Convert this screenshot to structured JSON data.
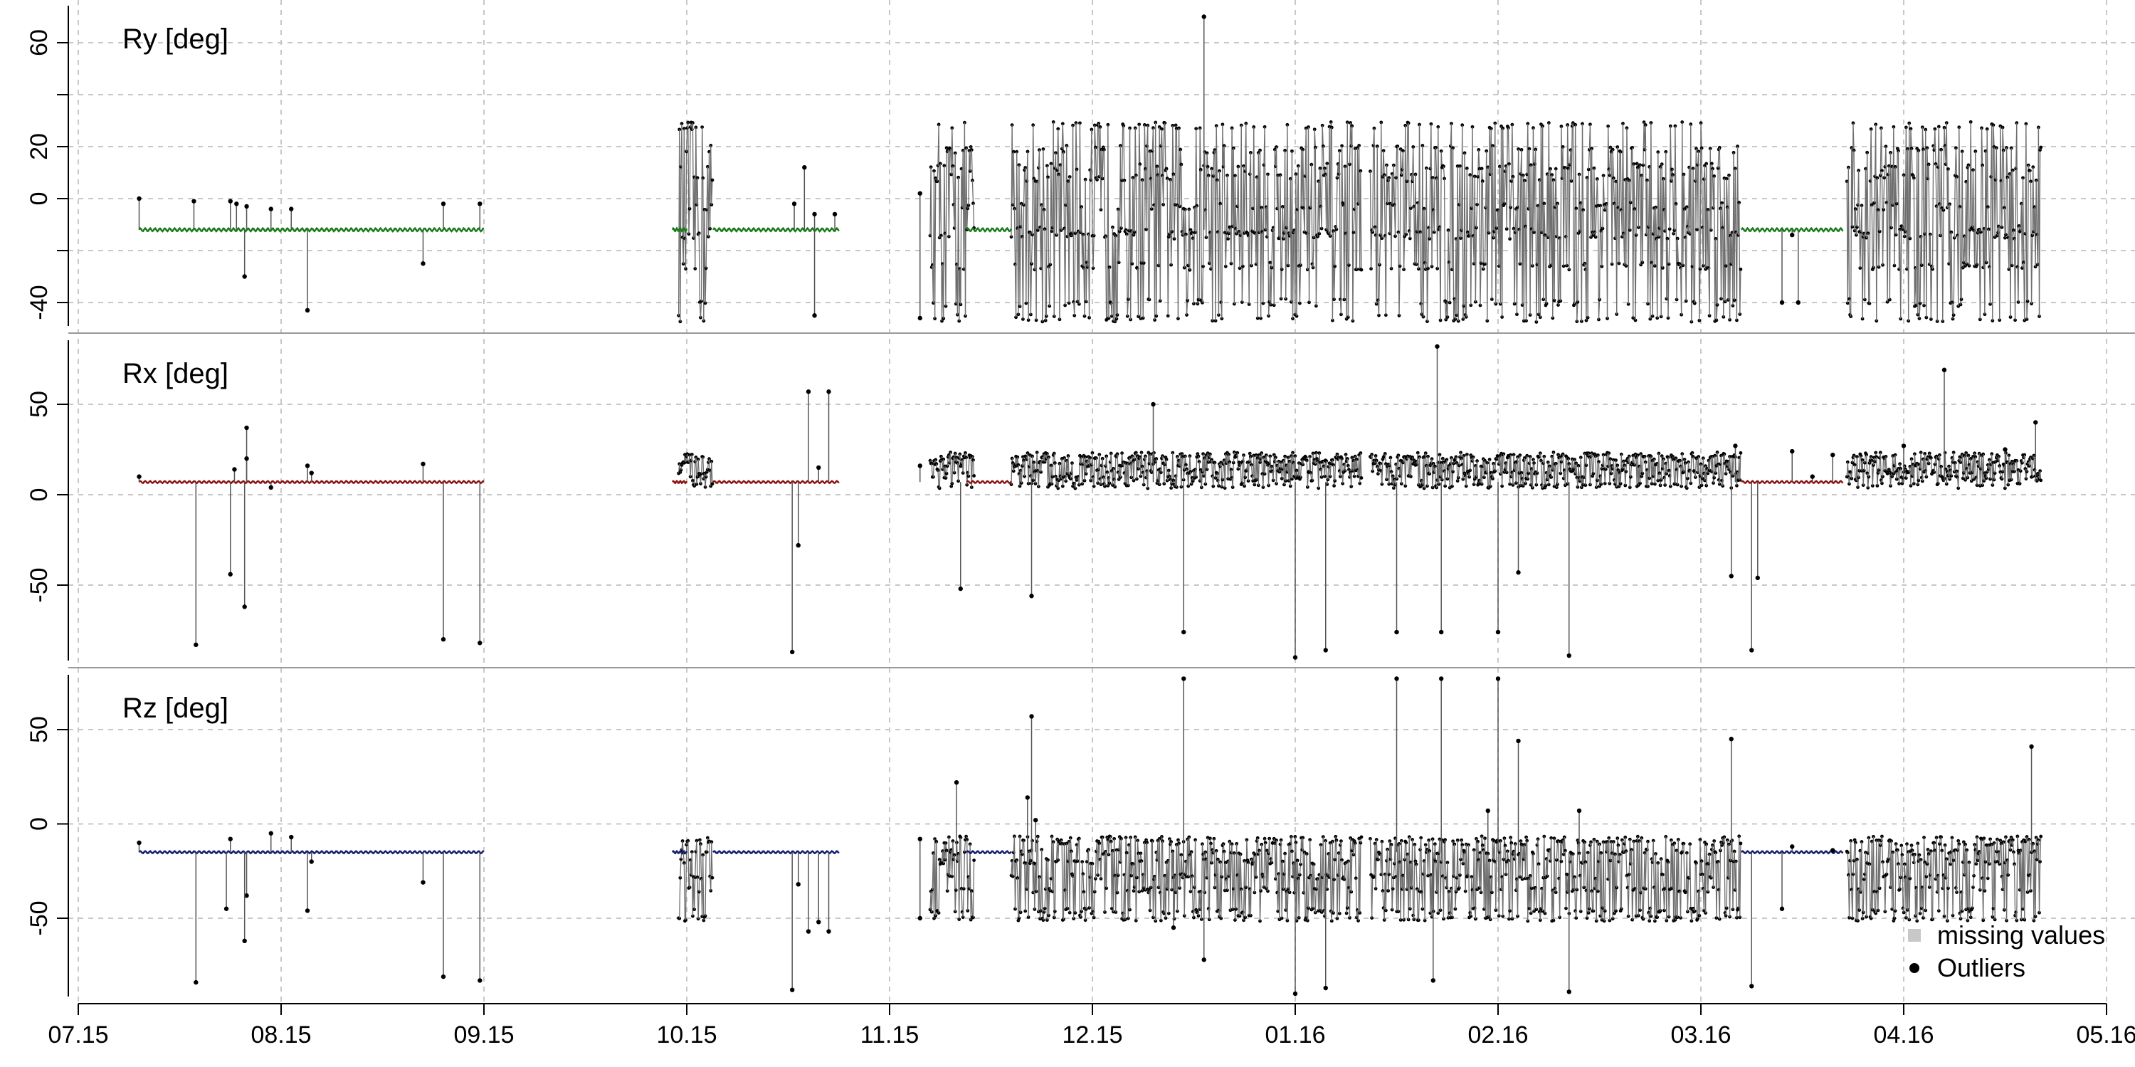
{
  "chart_data": {
    "type": "line",
    "x_ticks": [
      "07.15",
      "08.15",
      "09.15",
      "10.15",
      "11.15",
      "12.15",
      "01.16",
      "02.16",
      "03.16",
      "04.16",
      "05.16"
    ],
    "x_tick_positions": [
      0,
      1,
      2,
      3,
      4,
      5,
      6,
      7,
      8,
      9,
      10
    ],
    "x_range": [
      -0.02,
      10.02
    ],
    "segments": {
      "clean": [
        [
          0.3,
          2.0
        ],
        [
          2.93,
          3.0
        ],
        [
          3.13,
          3.75
        ],
        [
          4.38,
          4.6
        ],
        [
          8.2,
          8.7
        ]
      ],
      "noisy": [
        [
          2.96,
          3.13
        ],
        [
          4.2,
          4.42
        ],
        [
          4.6,
          6.33
        ],
        [
          6.37,
          8.2
        ],
        [
          8.72,
          9.68
        ]
      ],
      "flat_noisy": [
        [
          4.58,
          4.6
        ]
      ]
    },
    "panels": [
      {
        "id": "ry",
        "label": "Ry  [deg]",
        "color": "#1a7a1a",
        "y_ticks": [
          -40,
          0,
          20,
          60
        ],
        "grid_y": [
          -40,
          -20,
          0,
          20,
          40,
          60
        ],
        "y_range": [
          -47,
          72
        ],
        "baseline": -12,
        "noise_low": -46,
        "noise_high": 28,
        "noise_levels": [
          -46,
          -40,
          -26,
          -14,
          -12,
          -3,
          8,
          12,
          19,
          28
        ],
        "outliers": [
          {
            "x": 0.3,
            "y": 0
          },
          {
            "x": 0.57,
            "y": -1
          },
          {
            "x": 0.75,
            "y": -1
          },
          {
            "x": 0.78,
            "y": -2
          },
          {
            "x": 0.82,
            "y": -30
          },
          {
            "x": 0.83,
            "y": -3
          },
          {
            "x": 0.95,
            "y": -4
          },
          {
            "x": 1.13,
            "y": -43
          },
          {
            "x": 1.05,
            "y": -4
          },
          {
            "x": 1.7,
            "y": -25
          },
          {
            "x": 1.8,
            "y": -2
          },
          {
            "x": 1.98,
            "y": -2
          },
          {
            "x": 3.53,
            "y": -2
          },
          {
            "x": 3.58,
            "y": 12
          },
          {
            "x": 3.63,
            "y": -6
          },
          {
            "x": 3.63,
            "y": -45
          },
          {
            "x": 3.73,
            "y": -6
          },
          {
            "x": 4.15,
            "y": 2
          },
          {
            "x": 4.15,
            "y": -46
          },
          {
            "x": 5.55,
            "y": 70
          },
          {
            "x": 8.4,
            "y": -40
          },
          {
            "x": 8.45,
            "y": -14
          },
          {
            "x": 8.48,
            "y": -40
          }
        ]
      },
      {
        "id": "rx",
        "label": "Rx  [deg]",
        "color": "#8b1414",
        "y_ticks": [
          -50,
          0,
          50
        ],
        "grid_y": [
          -50,
          0,
          50
        ],
        "y_range": [
          -92,
          83
        ],
        "baseline": 7,
        "noise_low": 5,
        "noise_high": 22,
        "noise_levels": [
          5,
          9,
          13,
          17,
          20,
          22
        ],
        "outliers": [
          {
            "x": 0.3,
            "y": 10
          },
          {
            "x": 0.58,
            "y": -83
          },
          {
            "x": 0.75,
            "y": -44
          },
          {
            "x": 0.77,
            "y": 14
          },
          {
            "x": 0.83,
            "y": 37
          },
          {
            "x": 0.82,
            "y": -62
          },
          {
            "x": 0.83,
            "y": 20
          },
          {
            "x": 0.95,
            "y": 4
          },
          {
            "x": 1.13,
            "y": 16
          },
          {
            "x": 1.15,
            "y": 12
          },
          {
            "x": 1.7,
            "y": 17
          },
          {
            "x": 1.8,
            "y": -80
          },
          {
            "x": 1.98,
            "y": -82
          },
          {
            "x": 3.52,
            "y": -87
          },
          {
            "x": 3.55,
            "y": -28
          },
          {
            "x": 3.6,
            "y": 57
          },
          {
            "x": 3.65,
            "y": 15
          },
          {
            "x": 3.7,
            "y": 57
          },
          {
            "x": 4.15,
            "y": 16
          },
          {
            "x": 4.35,
            "y": -52
          },
          {
            "x": 4.7,
            "y": -56
          },
          {
            "x": 5.3,
            "y": 50
          },
          {
            "x": 5.45,
            "y": -76
          },
          {
            "x": 6.0,
            "y": -90
          },
          {
            "x": 6.15,
            "y": -86
          },
          {
            "x": 6.5,
            "y": -76
          },
          {
            "x": 6.7,
            "y": 82
          },
          {
            "x": 6.72,
            "y": -76
          },
          {
            "x": 7.0,
            "y": -76
          },
          {
            "x": 7.1,
            "y": -43
          },
          {
            "x": 7.35,
            "y": -89
          },
          {
            "x": 8.15,
            "y": -45
          },
          {
            "x": 8.17,
            "y": 27
          },
          {
            "x": 8.25,
            "y": -86
          },
          {
            "x": 8.28,
            "y": -46
          },
          {
            "x": 8.45,
            "y": 24
          },
          {
            "x": 8.55,
            "y": 10
          },
          {
            "x": 8.65,
            "y": 22
          },
          {
            "x": 9.0,
            "y": 27
          },
          {
            "x": 9.2,
            "y": 69
          },
          {
            "x": 9.5,
            "y": 25
          },
          {
            "x": 9.65,
            "y": 40
          }
        ]
      },
      {
        "id": "rz",
        "label": "Rz  [deg]",
        "color": "#16206e",
        "y_ticks": [
          -50,
          0,
          50
        ],
        "grid_y": [
          -50,
          0,
          50
        ],
        "y_range": [
          -92,
          83
        ],
        "baseline": -15,
        "noise_low": -50,
        "noise_high": -8,
        "noise_levels": [
          -50,
          -46,
          -35,
          -28,
          -20,
          -15,
          -10,
          -8
        ],
        "outliers": [
          {
            "x": 0.3,
            "y": -10
          },
          {
            "x": 0.58,
            "y": -84
          },
          {
            "x": 0.73,
            "y": -45
          },
          {
            "x": 0.75,
            "y": -8
          },
          {
            "x": 0.83,
            "y": -38
          },
          {
            "x": 0.82,
            "y": -62
          },
          {
            "x": 0.95,
            "y": -5
          },
          {
            "x": 1.05,
            "y": -7
          },
          {
            "x": 1.13,
            "y": -46
          },
          {
            "x": 1.15,
            "y": -20
          },
          {
            "x": 1.7,
            "y": -31
          },
          {
            "x": 1.8,
            "y": -81
          },
          {
            "x": 1.98,
            "y": -83
          },
          {
            "x": 3.52,
            "y": -88
          },
          {
            "x": 3.55,
            "y": -32
          },
          {
            "x": 3.6,
            "y": -57
          },
          {
            "x": 3.65,
            "y": -52
          },
          {
            "x": 3.7,
            "y": -57
          },
          {
            "x": 4.15,
            "y": -8
          },
          {
            "x": 4.15,
            "y": -50
          },
          {
            "x": 4.33,
            "y": 22
          },
          {
            "x": 4.68,
            "y": 14
          },
          {
            "x": 4.7,
            "y": 57
          },
          {
            "x": 4.72,
            "y": 2
          },
          {
            "x": 5.4,
            "y": -55
          },
          {
            "x": 5.45,
            "y": 77
          },
          {
            "x": 5.55,
            "y": -72
          },
          {
            "x": 6.0,
            "y": -90
          },
          {
            "x": 6.15,
            "y": -87
          },
          {
            "x": 6.5,
            "y": 77
          },
          {
            "x": 6.68,
            "y": -83
          },
          {
            "x": 6.72,
            "y": 77
          },
          {
            "x": 6.95,
            "y": 7
          },
          {
            "x": 7.0,
            "y": 77
          },
          {
            "x": 7.1,
            "y": 44
          },
          {
            "x": 7.35,
            "y": -89
          },
          {
            "x": 7.4,
            "y": 7
          },
          {
            "x": 8.15,
            "y": 45
          },
          {
            "x": 8.25,
            "y": -86
          },
          {
            "x": 8.4,
            "y": -45
          },
          {
            "x": 8.45,
            "y": -12
          },
          {
            "x": 8.65,
            "y": -14
          },
          {
            "x": 9.63,
            "y": 41
          }
        ]
      }
    ],
    "legend": {
      "placement": "bottom-right",
      "items": [
        {
          "label": "missing values",
          "marker": "square",
          "color": "#c8c8c8"
        },
        {
          "label": "Outliers",
          "marker": "circle",
          "color": "#000000"
        }
      ]
    },
    "grid": true
  }
}
